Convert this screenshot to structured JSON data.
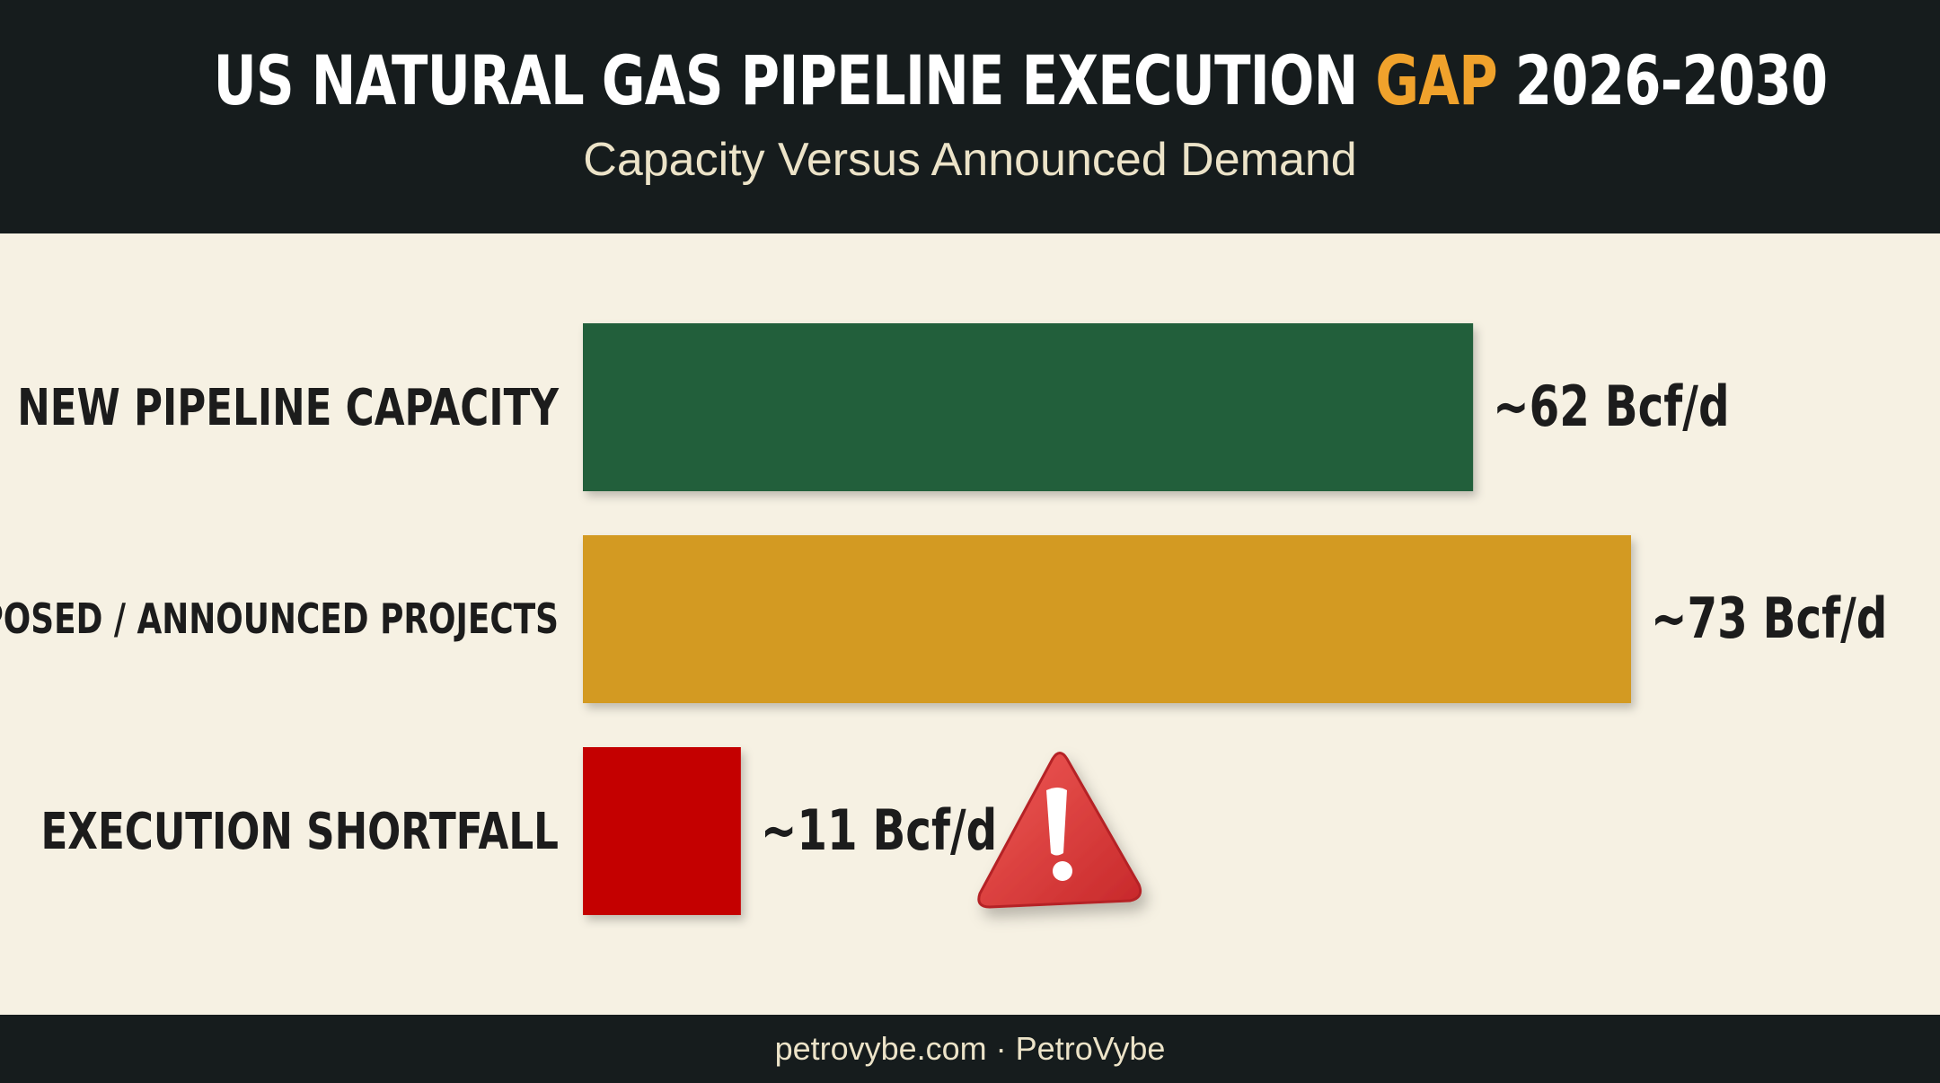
{
  "title": {
    "prefix": "US NATURAL GAS PIPELINE EXECUTION ",
    "highlight": "GAP",
    "suffix": " 2026-2030"
  },
  "subtitle": "Capacity Versus Announced Demand",
  "footer": {
    "site": "petrovybe.com",
    "separator": "·",
    "brand": "PetroVybe"
  },
  "colors": {
    "header_bg": "#161c1d",
    "title_highlight": "#f0a22c",
    "body_bg": "#f6f1e3",
    "warning": "#e0393b"
  },
  "warning_icon": "warning-triangle-icon",
  "chart_data": {
    "type": "bar",
    "orientation": "horizontal",
    "categories": [
      "NEW PIPELINE CAPACITY",
      "PROPOSED / ANNOUNCED PROJECTS",
      "EXECUTION SHORTFALL"
    ],
    "values": [
      62,
      73,
      11
    ],
    "data_labels": [
      "~62 Bcf/d",
      "~73 Bcf/d",
      "~11 Bcf/d"
    ],
    "colors": [
      "#245e3b",
      "#d39a22",
      "#c40000"
    ],
    "unit": "Bcf/d",
    "xlim": [
      0,
      73
    ],
    "grid": false,
    "legend": "none"
  }
}
